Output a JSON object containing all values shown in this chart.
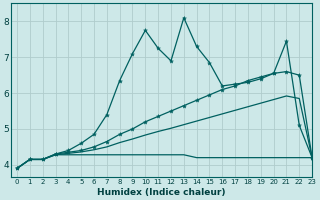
{
  "xlabel": "Humidex (Indice chaleur)",
  "bg_color": "#cde8e8",
  "grid_color": "#b0cccc",
  "line_color": "#006060",
  "text_color": "#004040",
  "xlim": [
    -0.5,
    23
  ],
  "ylim": [
    3.65,
    8.5
  ],
  "yticks": [
    4,
    5,
    6,
    7,
    8
  ],
  "xticks": [
    0,
    1,
    2,
    3,
    4,
    5,
    6,
    7,
    8,
    9,
    10,
    11,
    12,
    13,
    14,
    15,
    16,
    17,
    18,
    19,
    20,
    21,
    22,
    23
  ],
  "series1_x": [
    0,
    1,
    2,
    3,
    4,
    5,
    6,
    7,
    8,
    9,
    10,
    11,
    12,
    13,
    14,
    15,
    16,
    17,
    18,
    19,
    20,
    21,
    22,
    23
  ],
  "series1_y": [
    3.9,
    4.15,
    4.15,
    4.3,
    4.4,
    4.6,
    4.85,
    5.4,
    6.35,
    7.1,
    7.75,
    7.25,
    6.9,
    8.1,
    7.3,
    6.85,
    6.2,
    6.25,
    6.3,
    6.4,
    6.55,
    7.45,
    5.1,
    4.2
  ],
  "series2_x": [
    0,
    1,
    2,
    3,
    4,
    5,
    6,
    7,
    8,
    9,
    10,
    11,
    12,
    13,
    14,
    15,
    16,
    17,
    18,
    19,
    20,
    21,
    22,
    23
  ],
  "series2_y": [
    3.9,
    4.15,
    4.15,
    4.3,
    4.35,
    4.4,
    4.5,
    4.65,
    4.85,
    5.0,
    5.2,
    5.35,
    5.5,
    5.65,
    5.8,
    5.95,
    6.1,
    6.2,
    6.35,
    6.45,
    6.55,
    6.6,
    6.5,
    4.2
  ],
  "series3_x": [
    0,
    1,
    2,
    3,
    4,
    5,
    6,
    7,
    8,
    9,
    10,
    11,
    12,
    13,
    14,
    15,
    16,
    17,
    18,
    19,
    20,
    21,
    22,
    23
  ],
  "series3_y": [
    3.9,
    4.15,
    4.15,
    4.28,
    4.32,
    4.36,
    4.42,
    4.5,
    4.62,
    4.72,
    4.83,
    4.93,
    5.02,
    5.12,
    5.22,
    5.32,
    5.42,
    5.52,
    5.62,
    5.72,
    5.82,
    5.92,
    5.85,
    4.2
  ],
  "series4_x": [
    0,
    1,
    2,
    3,
    4,
    5,
    6,
    7,
    8,
    9,
    10,
    11,
    12,
    13,
    14,
    15,
    16,
    17,
    18,
    19,
    20,
    21,
    22,
    23
  ],
  "series4_y": [
    3.9,
    4.15,
    4.15,
    4.28,
    4.28,
    4.28,
    4.28,
    4.28,
    4.28,
    4.28,
    4.28,
    4.28,
    4.28,
    4.28,
    4.2,
    4.2,
    4.2,
    4.2,
    4.2,
    4.2,
    4.2,
    4.2,
    4.2,
    4.2
  ]
}
